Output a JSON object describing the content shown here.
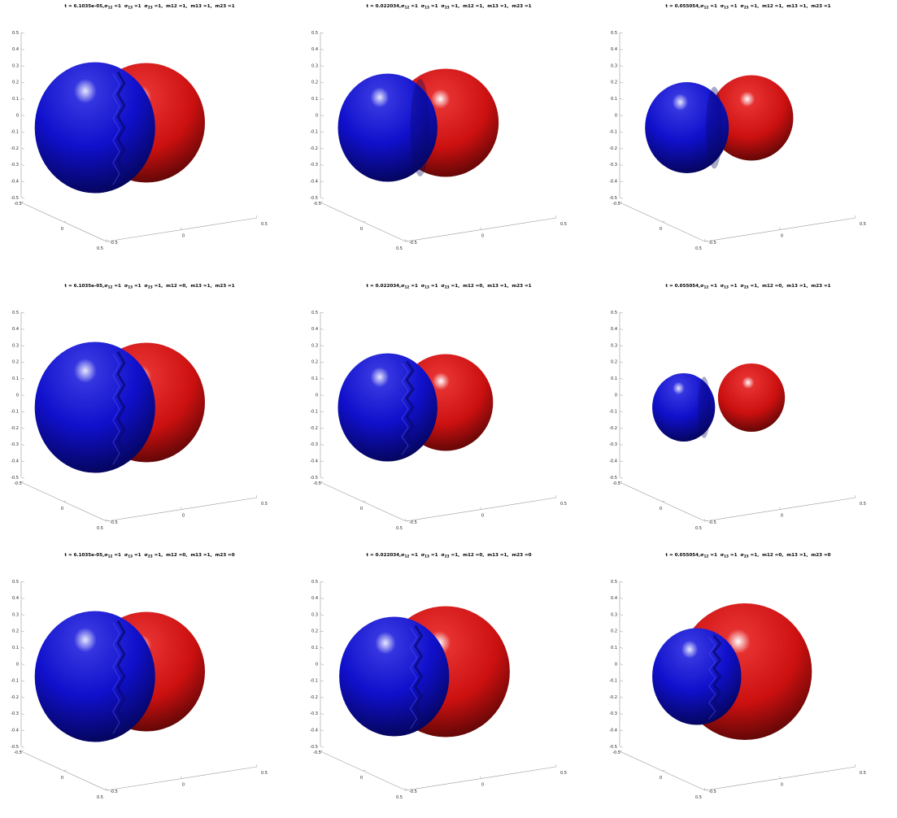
{
  "figure": {
    "subplots": [
      {
        "title": {
          "t": "6.1035e-05",
          "sigma12": "1",
          "sigma13": "1",
          "sigma23": "1",
          "m12": "1",
          "m13": "1",
          "m23": "1"
        },
        "red_radius": 0.21,
        "blue_radius": 0.23,
        "blue_offset": -0.1,
        "rippled": true,
        "blue_cover": "full"
      },
      {
        "title": {
          "t": "0.022034",
          "sigma12": "1",
          "sigma13": "1",
          "sigma23": "1",
          "m12": "1",
          "m13": "1",
          "m23": "1"
        },
        "red_radius": 0.19,
        "blue_radius": 0.19,
        "blue_offset": -0.12,
        "rippled": false,
        "blue_cover": "smooth"
      },
      {
        "title": {
          "t": "0.055054",
          "sigma12": "1",
          "sigma13": "1",
          "sigma23": "1",
          "m12": "1",
          "m13": "1",
          "m23": "1"
        },
        "red_radius": 0.15,
        "blue_radius": 0.16,
        "blue_offset": -0.12,
        "rippled": false,
        "blue_cover": "smooth"
      },
      {
        "title": {
          "t": "6.1035e-05",
          "sigma12": "1",
          "sigma13": "1",
          "sigma23": "1",
          "m12": "0",
          "m13": "1",
          "m23": "1"
        },
        "red_radius": 0.21,
        "blue_radius": 0.23,
        "blue_offset": -0.1,
        "rippled": true,
        "blue_cover": "full"
      },
      {
        "title": {
          "t": "0.022034",
          "sigma12": "1",
          "sigma13": "1",
          "sigma23": "1",
          "m12": "0",
          "m13": "1",
          "m23": "1"
        },
        "red_radius": 0.17,
        "blue_radius": 0.19,
        "blue_offset": -0.12,
        "rippled": true,
        "blue_cover": "partial"
      },
      {
        "title": {
          "t": "0.055054",
          "sigma12": "1",
          "sigma13": "1",
          "sigma23": "1",
          "m12": "0",
          "m13": "1",
          "m23": "1"
        },
        "red_radius": 0.12,
        "blue_radius": 0.12,
        "blue_offset": -0.13,
        "rippled": false,
        "blue_cover": "smooth"
      },
      {
        "title": {
          "t": "6.1035e-05",
          "sigma12": "1",
          "sigma13": "1",
          "sigma23": "1",
          "m12": "0",
          "m13": "1",
          "m23": "0"
        },
        "red_radius": 0.21,
        "blue_radius": 0.23,
        "blue_offset": -0.1,
        "rippled": true,
        "blue_cover": "full"
      },
      {
        "title": {
          "t": "0.022034",
          "sigma12": "1",
          "sigma13": "1",
          "sigma23": "1",
          "m12": "0",
          "m13": "1",
          "m23": "0"
        },
        "red_radius": 0.23,
        "blue_radius": 0.21,
        "blue_offset": -0.1,
        "rippled": true,
        "blue_cover": "partial"
      },
      {
        "title": {
          "t": "0.055054",
          "sigma12": "1",
          "sigma13": "1",
          "sigma23": "1",
          "m12": "0",
          "m13": "1",
          "m23": "0"
        },
        "red_radius": 0.24,
        "blue_radius": 0.17,
        "blue_offset": -0.09,
        "rippled": true,
        "blue_cover": "partial"
      }
    ],
    "colors": {
      "phase_a": "#cc1010",
      "phase_b": "#1010cc",
      "axis": "#9a9a9a"
    }
  },
  "chart_data": {
    "type": "scatter",
    "subtype": "3d-isosurface-grid",
    "rows": 3,
    "cols": 3,
    "zlim": [
      -0.5,
      0.5
    ],
    "xlim": [
      -0.5,
      0.5
    ],
    "ylim": [
      -0.5,
      0.5
    ],
    "z_ticks": [
      0.5,
      0.4,
      0.3,
      0.2,
      0.1,
      0,
      -0.1,
      -0.2,
      -0.3,
      -0.4,
      -0.5
    ],
    "x_ticks": [
      -0.5,
      0,
      0.5
    ],
    "y_ticks": [
      -0.5,
      0,
      0.5
    ],
    "tick_labels": {
      "z": [
        "0.5",
        "0.4",
        "0.3",
        "0.2",
        "0.1",
        "0",
        "-0.1",
        "-0.2",
        "-0.3",
        "-0.4",
        "-0.5"
      ],
      "y": [
        "-0.5",
        "0",
        "0.5"
      ],
      "x": [
        "-0.5",
        "0",
        "0.5"
      ]
    },
    "grid": false,
    "legend": "none"
  }
}
